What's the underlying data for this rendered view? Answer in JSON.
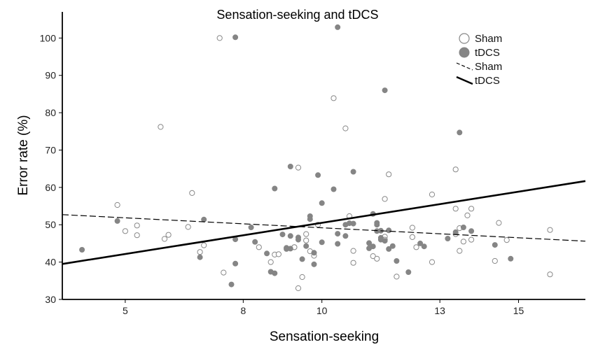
{
  "chart_data": {
    "type": "scatter",
    "title": "Sensation-seeking and tDCS",
    "xlabel": "Sensation-seeking",
    "ylabel": "Error rate (%)",
    "xlim": [
      3.4,
      16.7
    ],
    "ylim": [
      30,
      107
    ],
    "xticks": [
      5,
      8,
      10,
      13,
      15
    ],
    "xtick_labels": [
      "5",
      "8",
      "10",
      "13",
      "15"
    ],
    "yticks": [
      30,
      40,
      50,
      60,
      70,
      80,
      90,
      100
    ],
    "grid": false,
    "legend_position": "top-right",
    "series": [
      {
        "name": "Sham",
        "marker": "open-circle",
        "color": "#888888",
        "points": [
          [
            4.8,
            55.3
          ],
          [
            5.0,
            48.3
          ],
          [
            5.3,
            49.8
          ],
          [
            5.3,
            47.2
          ],
          [
            5.9,
            76.2
          ],
          [
            6.0,
            46.2
          ],
          [
            6.1,
            47.3
          ],
          [
            6.6,
            49.4
          ],
          [
            6.7,
            58.5
          ],
          [
            6.9,
            42.7
          ],
          [
            7.0,
            44.5
          ],
          [
            7.4,
            100.0
          ],
          [
            7.5,
            37.2
          ],
          [
            8.4,
            44.0
          ],
          [
            8.7,
            40.0
          ],
          [
            8.8,
            42.0
          ],
          [
            8.9,
            42.1
          ],
          [
            9.3,
            44.0
          ],
          [
            9.4,
            33.0
          ],
          [
            9.4,
            65.3
          ],
          [
            9.5,
            36.0
          ],
          [
            9.6,
            47.5
          ],
          [
            9.6,
            45.8
          ],
          [
            9.7,
            42.9
          ],
          [
            9.8,
            41.7
          ],
          [
            9.9,
            50.0
          ],
          [
            10.3,
            83.9
          ],
          [
            10.6,
            75.8
          ],
          [
            10.7,
            52.3
          ],
          [
            10.8,
            43.0
          ],
          [
            10.8,
            39.8
          ],
          [
            11.3,
            41.6
          ],
          [
            11.4,
            40.9
          ],
          [
            11.6,
            46.8
          ],
          [
            11.6,
            46.0
          ],
          [
            11.6,
            56.9
          ],
          [
            11.7,
            63.5
          ],
          [
            11.9,
            36.1
          ],
          [
            12.3,
            49.2
          ],
          [
            12.3,
            46.7
          ],
          [
            12.4,
            44.0
          ],
          [
            12.8,
            58.1
          ],
          [
            12.8,
            40.0
          ],
          [
            13.4,
            64.8
          ],
          [
            13.4,
            54.3
          ],
          [
            13.5,
            43.0
          ],
          [
            13.5,
            49.1
          ],
          [
            13.6,
            45.5
          ],
          [
            13.7,
            52.5
          ],
          [
            13.8,
            54.3
          ],
          [
            13.8,
            46.0
          ],
          [
            14.4,
            40.3
          ],
          [
            14.5,
            50.5
          ],
          [
            14.7,
            45.9
          ],
          [
            15.8,
            48.6
          ],
          [
            15.8,
            36.7
          ],
          [
            13.4,
            47.5
          ],
          [
            9.3,
            44.0
          ]
        ]
      },
      {
        "name": "tDCS",
        "marker": "filled-circle",
        "color": "#858585",
        "points": [
          [
            3.9,
            43.3
          ],
          [
            4.8,
            51.0
          ],
          [
            6.9,
            41.3
          ],
          [
            7.0,
            51.4
          ],
          [
            7.7,
            34.0
          ],
          [
            7.8,
            100.2
          ],
          [
            7.8,
            46.1
          ],
          [
            7.8,
            39.6
          ],
          [
            8.2,
            49.3
          ],
          [
            8.3,
            45.4
          ],
          [
            8.6,
            42.3
          ],
          [
            8.7,
            37.4
          ],
          [
            8.8,
            37.0
          ],
          [
            8.8,
            59.7
          ],
          [
            9.0,
            47.4
          ],
          [
            9.1,
            43.8
          ],
          [
            9.1,
            43.5
          ],
          [
            9.2,
            47.0
          ],
          [
            9.2,
            65.6
          ],
          [
            9.4,
            46.6
          ],
          [
            9.4,
            46.0
          ],
          [
            9.5,
            40.8
          ],
          [
            9.6,
            44.3
          ],
          [
            9.7,
            52.3
          ],
          [
            9.7,
            51.5
          ],
          [
            9.8,
            42.5
          ],
          [
            9.8,
            39.4
          ],
          [
            9.9,
            63.3
          ],
          [
            10.0,
            55.8
          ],
          [
            10.0,
            45.3
          ],
          [
            10.3,
            59.5
          ],
          [
            10.4,
            102.9
          ],
          [
            10.4,
            47.6
          ],
          [
            10.4,
            44.9
          ],
          [
            10.6,
            47.0
          ],
          [
            10.6,
            50.0
          ],
          [
            10.8,
            50.3
          ],
          [
            10.8,
            64.2
          ],
          [
            11.2,
            45.1
          ],
          [
            11.3,
            52.9
          ],
          [
            11.3,
            44.2
          ],
          [
            11.4,
            50.0
          ],
          [
            11.4,
            48.3
          ],
          [
            11.5,
            46.0
          ],
          [
            11.6,
            86.0
          ],
          [
            11.6,
            45.7
          ],
          [
            11.7,
            48.5
          ],
          [
            11.7,
            43.5
          ],
          [
            11.8,
            44.3
          ],
          [
            11.9,
            40.3
          ],
          [
            12.2,
            37.3
          ],
          [
            12.5,
            45.0
          ],
          [
            13.2,
            46.3
          ],
          [
            13.4,
            48.0
          ],
          [
            13.5,
            74.7
          ],
          [
            13.6,
            49.3
          ],
          [
            13.8,
            48.3
          ],
          [
            14.4,
            44.6
          ],
          [
            14.8,
            40.9
          ],
          [
            12.6,
            44.2
          ],
          [
            11.5,
            46.5
          ],
          [
            11.4,
            50.5
          ],
          [
            9.2,
            43.6
          ],
          [
            10.7,
            50.4
          ],
          [
            11.2,
            43.7
          ],
          [
            11.5,
            48.4
          ]
        ]
      }
    ],
    "fit_lines": [
      {
        "name": "Sham",
        "style": "dashed",
        "x": [
          3.4,
          16.7
        ],
        "y": [
          52.7,
          45.6
        ]
      },
      {
        "name": "tDCS",
        "style": "solid",
        "x": [
          3.4,
          16.7
        ],
        "y": [
          39.5,
          61.7
        ]
      }
    ],
    "legend": [
      {
        "label": "Sham",
        "kind": "open-circle"
      },
      {
        "label": "tDCS",
        "kind": "filled-circle"
      },
      {
        "label": "Sham",
        "kind": "dashed-line"
      },
      {
        "label": "tDCS",
        "kind": "solid-line"
      }
    ]
  }
}
